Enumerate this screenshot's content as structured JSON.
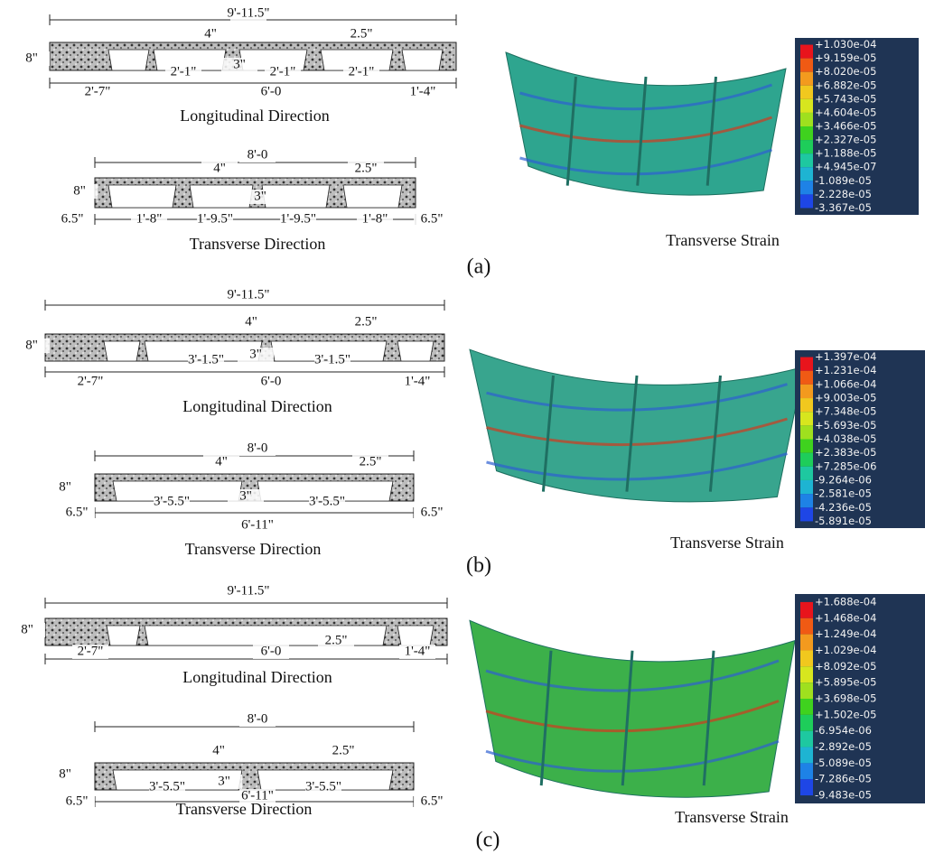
{
  "panels": [
    {
      "label": "(a)",
      "longitudinal": {
        "title": "Longitudinal Direction",
        "dims": [
          "9'-11.5\"",
          "4\"",
          "2.5\"",
          "8\"",
          "2'-1\"",
          "3\"",
          "2'-1\"",
          "2'-1\"",
          "2'-7\"",
          "6'-0",
          "1'-4\""
        ]
      },
      "transverse": {
        "title": "Transverse Direction",
        "dims": [
          "8'-0",
          "4\"",
          "2.5\"",
          "8\"",
          "3\"",
          "6.5\"",
          "1'-8\"",
          "1'-9.5\"",
          "1'-9.5\"",
          "1'-8\"",
          "6.5\""
        ]
      },
      "caption": "Transverse Strain",
      "legend": [
        "+1.030e-04",
        "+9.159e-05",
        "+8.020e-05",
        "+6.882e-05",
        "+5.743e-05",
        "+4.604e-05",
        "+3.466e-05",
        "+2.327e-05",
        "+1.188e-05",
        "+4.945e-07",
        "-1.089e-05",
        "-2.228e-05",
        "-3.367e-05"
      ]
    },
    {
      "label": "(b)",
      "longitudinal": {
        "title": "Longitudinal Direction",
        "dims": [
          "9'-11.5\"",
          "4\"",
          "2.5\"",
          "8\"",
          "3'-1.5\"",
          "3\"",
          "3'-1.5\"",
          "2'-7\"",
          "6'-0",
          "1'-4\""
        ]
      },
      "transverse": {
        "title": "Transverse Direction",
        "dims": [
          "8'-0",
          "4\"",
          "2.5\"",
          "8\"",
          "3'-5.5\"",
          "3\"",
          "3'-5.5\"",
          "6.5\"",
          "6'-11\"",
          "6.5\""
        ]
      },
      "caption": "Transverse Strain",
      "legend": [
        "+1.397e-04",
        "+1.231e-04",
        "+1.066e-04",
        "+9.003e-05",
        "+7.348e-05",
        "+5.693e-05",
        "+4.038e-05",
        "+2.383e-05",
        "+7.285e-06",
        "-9.264e-06",
        "-2.581e-05",
        "-4.236e-05",
        "-5.891e-05"
      ]
    },
    {
      "label": "(c)",
      "longitudinal": {
        "title": "Longitudinal Direction",
        "dims": [
          "9'-11.5\"",
          "8\"",
          "2.5\"",
          "2'-7\"",
          "6'-0",
          "1'-4\""
        ]
      },
      "transverse": {
        "title": "Transverse Direction",
        "dims": [
          "8'-0",
          "4\"",
          "2.5\"",
          "8\"",
          "3'-5.5\"",
          "3\"",
          "3'-5.5\"",
          "6.5\"",
          "6'-11\"",
          "6.5\""
        ]
      },
      "caption": "Transverse Strain",
      "legend": [
        "+1.688e-04",
        "+1.468e-04",
        "+1.249e-04",
        "+1.029e-04",
        "+8.092e-05",
        "+5.895e-05",
        "+3.698e-05",
        "+1.502e-05",
        "-6.954e-06",
        "-2.892e-05",
        "-5.089e-05",
        "-7.286e-05",
        "-9.483e-05"
      ]
    }
  ]
}
